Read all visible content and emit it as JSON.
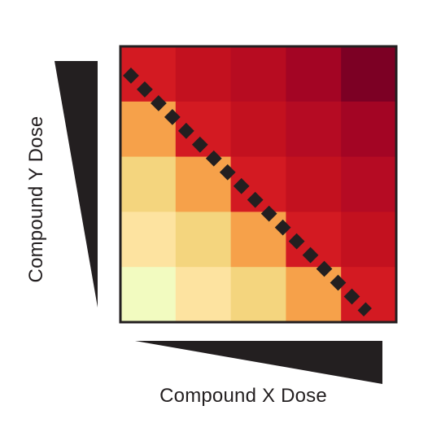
{
  "x_axis_label": "Compound X Dose",
  "y_axis_label": "Compound Y Dose",
  "heatmap": {
    "columns": 5,
    "rows": 5,
    "row_order": "top-to-bottom",
    "cells": [
      [
        "#d31a22",
        "#c3111f",
        "#b70c21",
        "#a30524",
        "#7c0024"
      ],
      [
        "#f6a14a",
        "#d31a22",
        "#c3111f",
        "#b50b23",
        "#a30524"
      ],
      [
        "#f4d57e",
        "#f6a14a",
        "#d31a22",
        "#c3111f",
        "#b50b23"
      ],
      [
        "#fde3a0",
        "#f4d57e",
        "#f6a14a",
        "#d31a22",
        "#c3111f"
      ],
      [
        "#f2fbc0",
        "#fde3a0",
        "#f4d57e",
        "#f6a14a",
        "#d31a22"
      ]
    ],
    "border_color": "#231f20",
    "diagonal_style": "dashed"
  },
  "dose_wedges": {
    "color": "#231f20"
  }
}
